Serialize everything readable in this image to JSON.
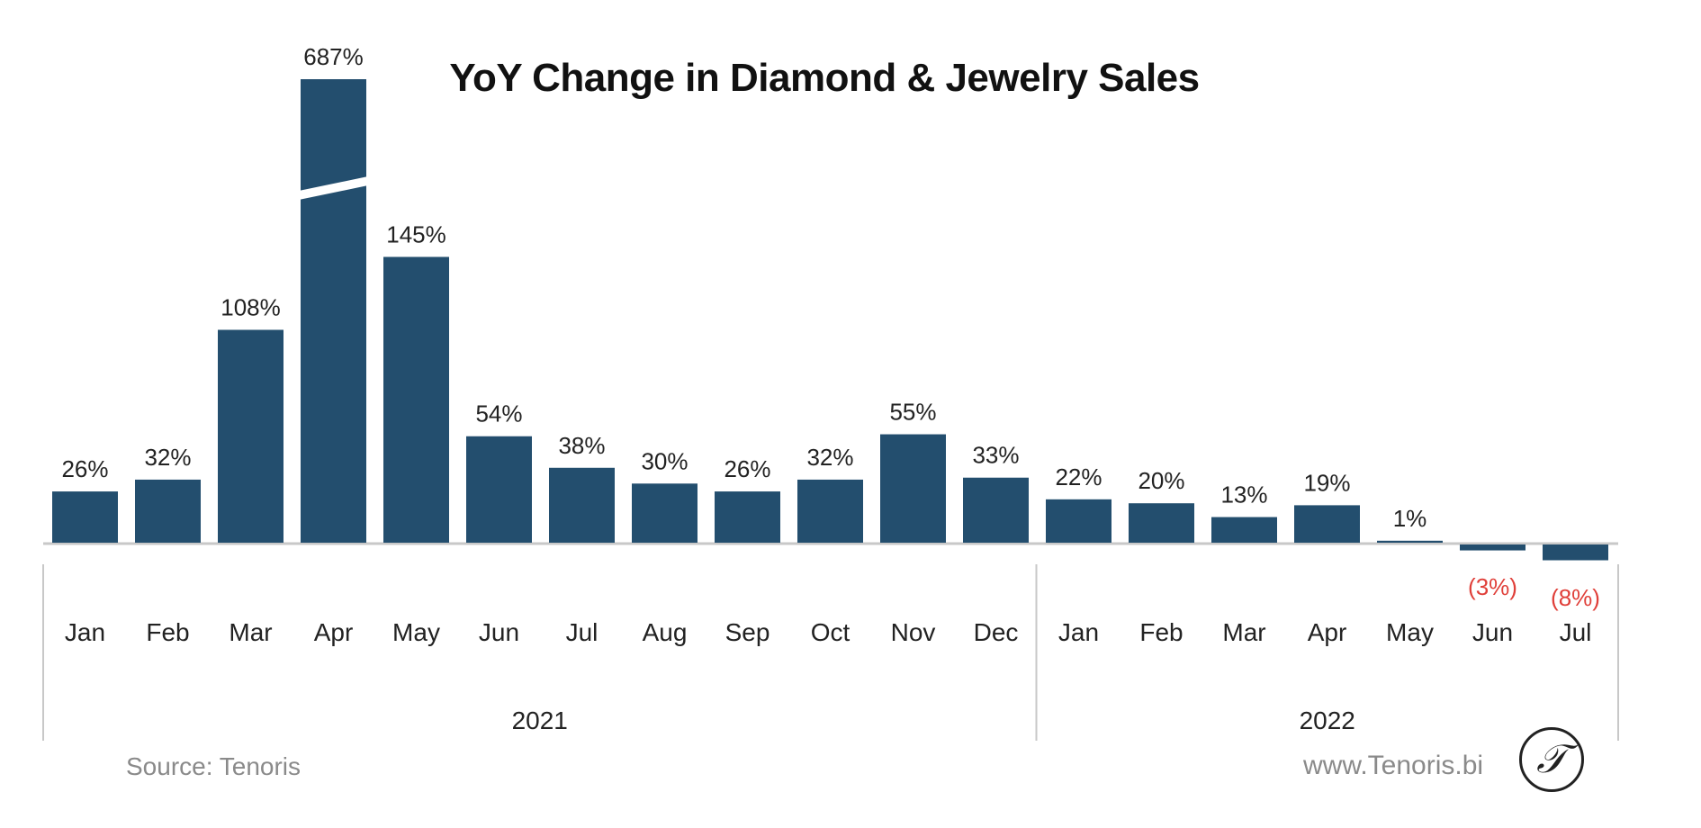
{
  "chart_data": {
    "type": "bar",
    "title": "YoY Change in Diamond & Jewelry Sales",
    "categories": [
      "Jan",
      "Feb",
      "Mar",
      "Apr",
      "May",
      "Jun",
      "Jul",
      "Aug",
      "Sep",
      "Oct",
      "Nov",
      "Dec",
      "Jan",
      "Feb",
      "Mar",
      "Apr",
      "May",
      "Jun",
      "Jul"
    ],
    "groups": [
      {
        "label": "2021",
        "count": 12
      },
      {
        "label": "2022",
        "count": 7
      }
    ],
    "values": [
      26,
      32,
      108,
      687,
      145,
      54,
      38,
      30,
      26,
      32,
      55,
      33,
      22,
      20,
      13,
      19,
      1,
      -3,
      -8
    ],
    "data_labels": [
      "26%",
      "32%",
      "108%",
      "687%",
      "145%",
      "54%",
      "38%",
      "30%",
      "26%",
      "32%",
      "55%",
      "33%",
      "22%",
      "20%",
      "13%",
      "19%",
      "1%",
      "(3%)",
      "(8%)"
    ],
    "broken_axis_category": "Apr",
    "grid": false,
    "legend": "none",
    "colors": {
      "bar": "#234e6e",
      "negative_label": "#e0403a",
      "label": "#222222",
      "axis": "#c8c8c8"
    }
  },
  "footer": {
    "source": "Source: Tenoris",
    "website": "www.Tenoris.bi",
    "logo_letter": "T"
  }
}
